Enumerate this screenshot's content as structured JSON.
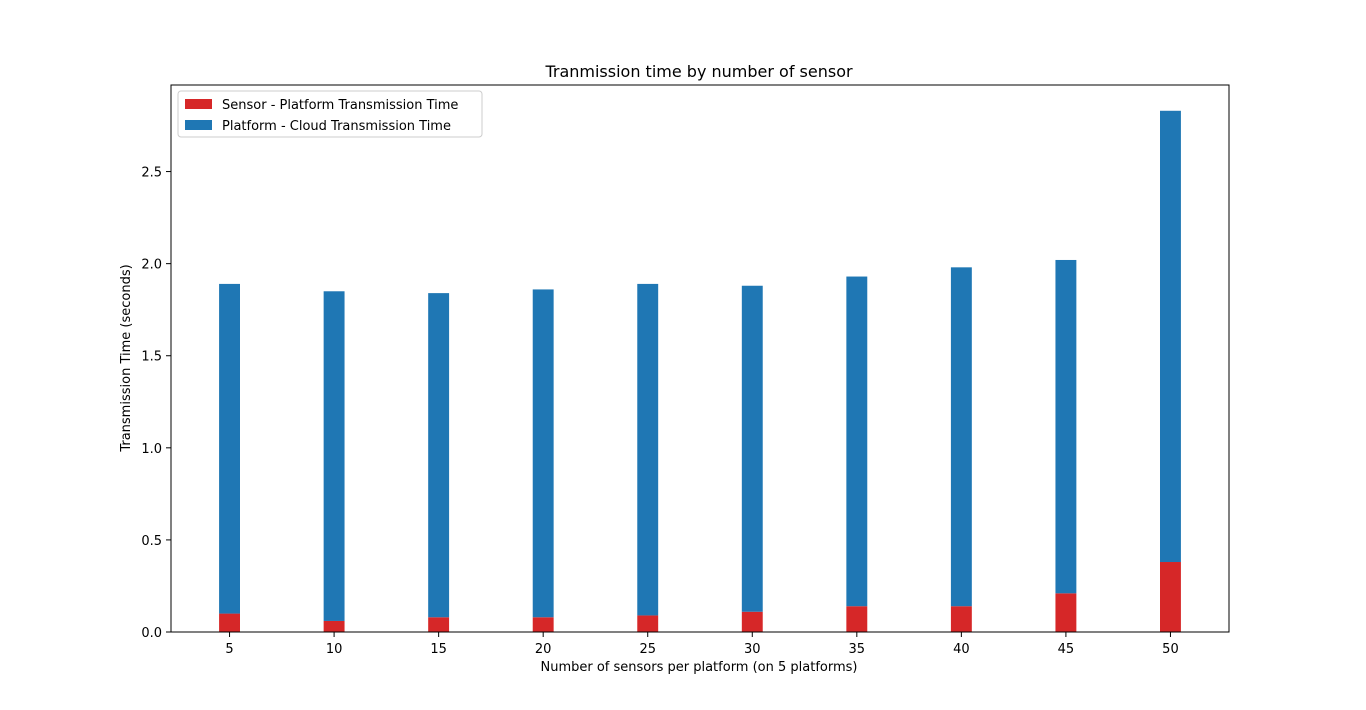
{
  "chart_data": {
    "type": "bar",
    "stacked": true,
    "title": "Tranmission time by number of sensor",
    "xlabel": "Number of sensors per platform (on 5 platforms)",
    "ylabel": "Transmission Time (seconds)",
    "categories": [
      5,
      10,
      15,
      20,
      25,
      30,
      35,
      40,
      45,
      50
    ],
    "xlim": [
      2.2,
      52.8
    ],
    "ylim": [
      0,
      2.97
    ],
    "yticks": [
      0.0,
      0.5,
      1.0,
      1.5,
      2.0,
      2.5
    ],
    "ytick_labels": [
      "0.0",
      "0.5",
      "1.0",
      "1.5",
      "2.0",
      "2.5"
    ],
    "xtick_labels": [
      "5",
      "10",
      "15",
      "20",
      "25",
      "30",
      "35",
      "40",
      "45",
      "50"
    ],
    "bar_width_units": 1,
    "grid": false,
    "legend_position": "top-left",
    "series": [
      {
        "name": "Sensor - Platform Transmission Time",
        "color": "#d62728",
        "values": [
          0.1,
          0.06,
          0.08,
          0.08,
          0.09,
          0.11,
          0.14,
          0.14,
          0.21,
          0.38
        ]
      },
      {
        "name": "Platform - Cloud Transmission Time",
        "color": "#1f77b4",
        "values": [
          1.79,
          1.79,
          1.76,
          1.78,
          1.8,
          1.77,
          1.79,
          1.84,
          1.81,
          2.45
        ]
      }
    ]
  }
}
